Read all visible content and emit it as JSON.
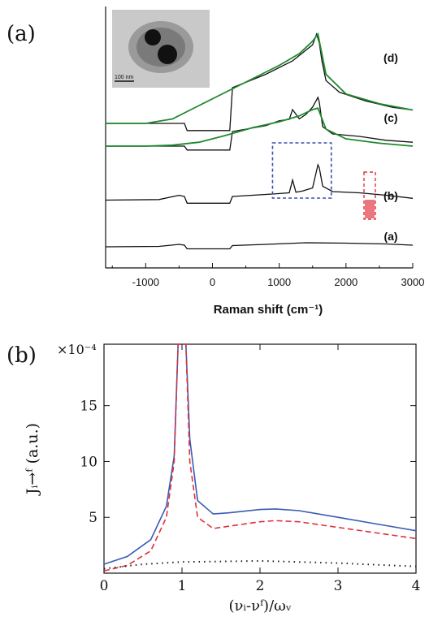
{
  "chart_data": [
    {
      "type": "line",
      "panel_label": "(a)",
      "xlabel": "Raman shift (cm⁻¹)",
      "ylabel": "",
      "xlim": [
        -1600,
        3000
      ],
      "x_ticks": [
        "-1000",
        "0",
        "1000",
        "2000",
        "3000"
      ],
      "x_tick_values": [
        -1000,
        0,
        1000,
        2000,
        3000
      ],
      "y_ticks_shown": false,
      "inset": {
        "scale_label": "100 nm"
      },
      "curve_labels": [
        "(a)",
        "(b)",
        "(c)",
        "(d)"
      ],
      "series": [
        {
          "name": "(a)",
          "color": "#111111",
          "x": [
            -1600,
            -800,
            -500,
            -420,
            -380,
            0,
            260,
            300,
            800,
            1400,
            2000,
            2600,
            3000
          ],
          "y": [
            0.02,
            0.03,
            0.08,
            0.06,
            -0.03,
            -0.03,
            -0.03,
            0.05,
            0.08,
            0.12,
            0.11,
            0.09,
            0.06
          ]
        },
        {
          "name": "(b)",
          "color": "#111111",
          "x": [
            -1600,
            -800,
            -500,
            -420,
            -380,
            0,
            260,
            300,
            900,
            1150,
            1200,
            1250,
            1350,
            1500,
            1580,
            1600,
            1650,
            1800,
            2200,
            2600,
            3000
          ],
          "y": [
            0.02,
            0.03,
            0.1,
            0.08,
            -0.03,
            -0.03,
            -0.03,
            0.08,
            0.12,
            0.14,
            0.35,
            0.15,
            0.17,
            0.22,
            0.6,
            0.55,
            0.25,
            0.16,
            0.14,
            0.1,
            0.05
          ]
        },
        {
          "name": "(c)",
          "color": "#111111",
          "x": [
            -1600,
            -600,
            -420,
            -380,
            0,
            260,
            300,
            800,
            1000,
            1150,
            1200,
            1300,
            1400,
            1500,
            1580,
            1600,
            1650,
            1800,
            2200,
            2600,
            3000
          ],
          "y": [
            0.0,
            0.0,
            0.0,
            -0.08,
            -0.08,
            -0.08,
            0.3,
            0.42,
            0.52,
            0.55,
            0.75,
            0.56,
            0.65,
            0.8,
            1.0,
            0.9,
            0.4,
            0.25,
            0.2,
            0.12,
            0.08
          ]
        },
        {
          "name": "(c) fit",
          "color": "#1f8a2e",
          "x": [
            -1600,
            -1000,
            -600,
            -200,
            200,
            600,
            1000,
            1300,
            1500,
            1580,
            1700,
            2000,
            2500,
            3000
          ],
          "y": [
            0.0,
            0.0,
            0.02,
            0.08,
            0.22,
            0.38,
            0.5,
            0.62,
            0.75,
            0.78,
            0.35,
            0.15,
            0.06,
            0.0
          ]
        },
        {
          "name": "(d)",
          "color": "#111111",
          "x": [
            -1600,
            -600,
            -420,
            -380,
            0,
            260,
            300,
            800,
            1200,
            1500,
            1560,
            1600,
            1640,
            1700,
            1900,
            2300,
            2700,
            3000
          ],
          "y": [
            0.0,
            0.0,
            0.0,
            -0.08,
            -0.08,
            -0.08,
            0.4,
            0.55,
            0.7,
            0.88,
            1.0,
            0.9,
            0.7,
            0.48,
            0.35,
            0.25,
            0.18,
            0.15
          ]
        },
        {
          "name": "(d) fit",
          "color": "#1f8a2e",
          "x": [
            -1600,
            -1000,
            -600,
            -200,
            200,
            600,
            1000,
            1300,
            1500,
            1580,
            1700,
            2000,
            2500,
            3000
          ],
          "y": [
            0.0,
            0.0,
            0.05,
            0.2,
            0.35,
            0.5,
            0.65,
            0.78,
            0.92,
            1.0,
            0.55,
            0.33,
            0.22,
            0.15
          ]
        }
      ],
      "highlights": [
        {
          "kind": "blue-dashed-box",
          "x_range": [
            900,
            1780
          ],
          "color": "#3a4fb0"
        },
        {
          "kind": "red-dashed-box",
          "x_range": [
            2270,
            2440
          ],
          "color": "#e0303a"
        }
      ]
    },
    {
      "type": "line",
      "panel_label": "(b)",
      "xlabel": "(νᵢ-νᶠ)/ωᵥ",
      "ylabel": "Jᵢ→ᶠ (a.u.)",
      "y_multiplier": "×10⁻⁴",
      "xlim": [
        0,
        4
      ],
      "ylim": [
        0,
        20.5
      ],
      "x_ticks": [
        "0",
        "1",
        "2",
        "3",
        "4"
      ],
      "x_tick_values": [
        0,
        1,
        2,
        3,
        4
      ],
      "y_ticks": [
        "5",
        "10",
        "15"
      ],
      "y_tick_values": [
        5,
        10,
        15
      ],
      "series": [
        {
          "name": "solid",
          "style": "solid",
          "color": "#3a5bb5",
          "x": [
            0,
            0.3,
            0.6,
            0.8,
            0.9,
            0.95,
            1.0,
            1.05,
            1.1,
            1.2,
            1.4,
            1.6,
            2.0,
            2.2,
            2.5,
            3.0,
            3.5,
            4.0
          ],
          "y": [
            0.8,
            1.5,
            3.0,
            6.0,
            10.5,
            20.5,
            20.5,
            20.5,
            12.0,
            6.5,
            5.3,
            5.4,
            5.7,
            5.75,
            5.6,
            5.0,
            4.4,
            3.8
          ]
        },
        {
          "name": "dashed",
          "style": "dashed",
          "color": "#e0303a",
          "x": [
            0,
            0.3,
            0.6,
            0.8,
            0.9,
            0.95,
            1.0,
            1.05,
            1.1,
            1.2,
            1.4,
            1.6,
            2.0,
            2.2,
            2.5,
            3.0,
            3.5,
            4.0
          ],
          "y": [
            0.2,
            0.7,
            2.0,
            5.0,
            10.0,
            20.5,
            20.5,
            20.5,
            10.0,
            5.0,
            4.0,
            4.2,
            4.6,
            4.7,
            4.6,
            4.1,
            3.6,
            3.1
          ]
        },
        {
          "name": "dotted",
          "style": "dotted",
          "color": "#222222",
          "x": [
            0,
            0.5,
            1.0,
            1.5,
            2.0,
            2.5,
            3.0,
            3.5,
            4.0
          ],
          "y": [
            0.4,
            0.8,
            1.0,
            1.05,
            1.1,
            1.0,
            0.9,
            0.75,
            0.6
          ]
        }
      ]
    }
  ]
}
